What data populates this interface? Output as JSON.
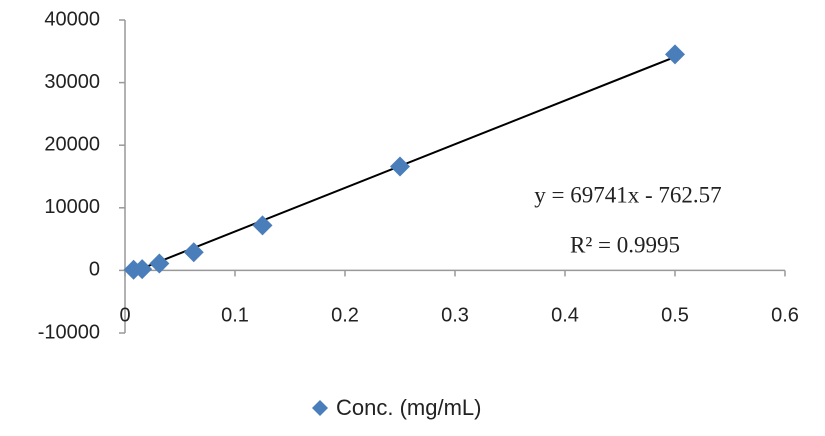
{
  "chart_data": {
    "type": "scatter",
    "series": [
      {
        "name": "Conc. (mg/mL)",
        "color": "#4a7ebb",
        "x": [
          0.0078,
          0.0156,
          0.03125,
          0.0625,
          0.125,
          0.25,
          0.5
        ],
        "values": [
          100,
          200,
          1100,
          2900,
          7200,
          16600,
          34500
        ]
      }
    ],
    "xlim": [
      0,
      0.6
    ],
    "xticks": [
      0,
      0.1,
      0.2,
      0.3,
      0.4,
      0.5,
      0.6
    ],
    "ylim": [
      -10000,
      40000
    ],
    "yticks": [
      -10000,
      0,
      10000,
      20000,
      30000,
      40000
    ],
    "grid": false,
    "legend": "bottom",
    "trendline": {
      "slope": 69741,
      "intercept": -762.57,
      "color": "#000000",
      "equation": "y = 69741x - 762.57",
      "r_squared": "R² = 0.9995"
    }
  }
}
